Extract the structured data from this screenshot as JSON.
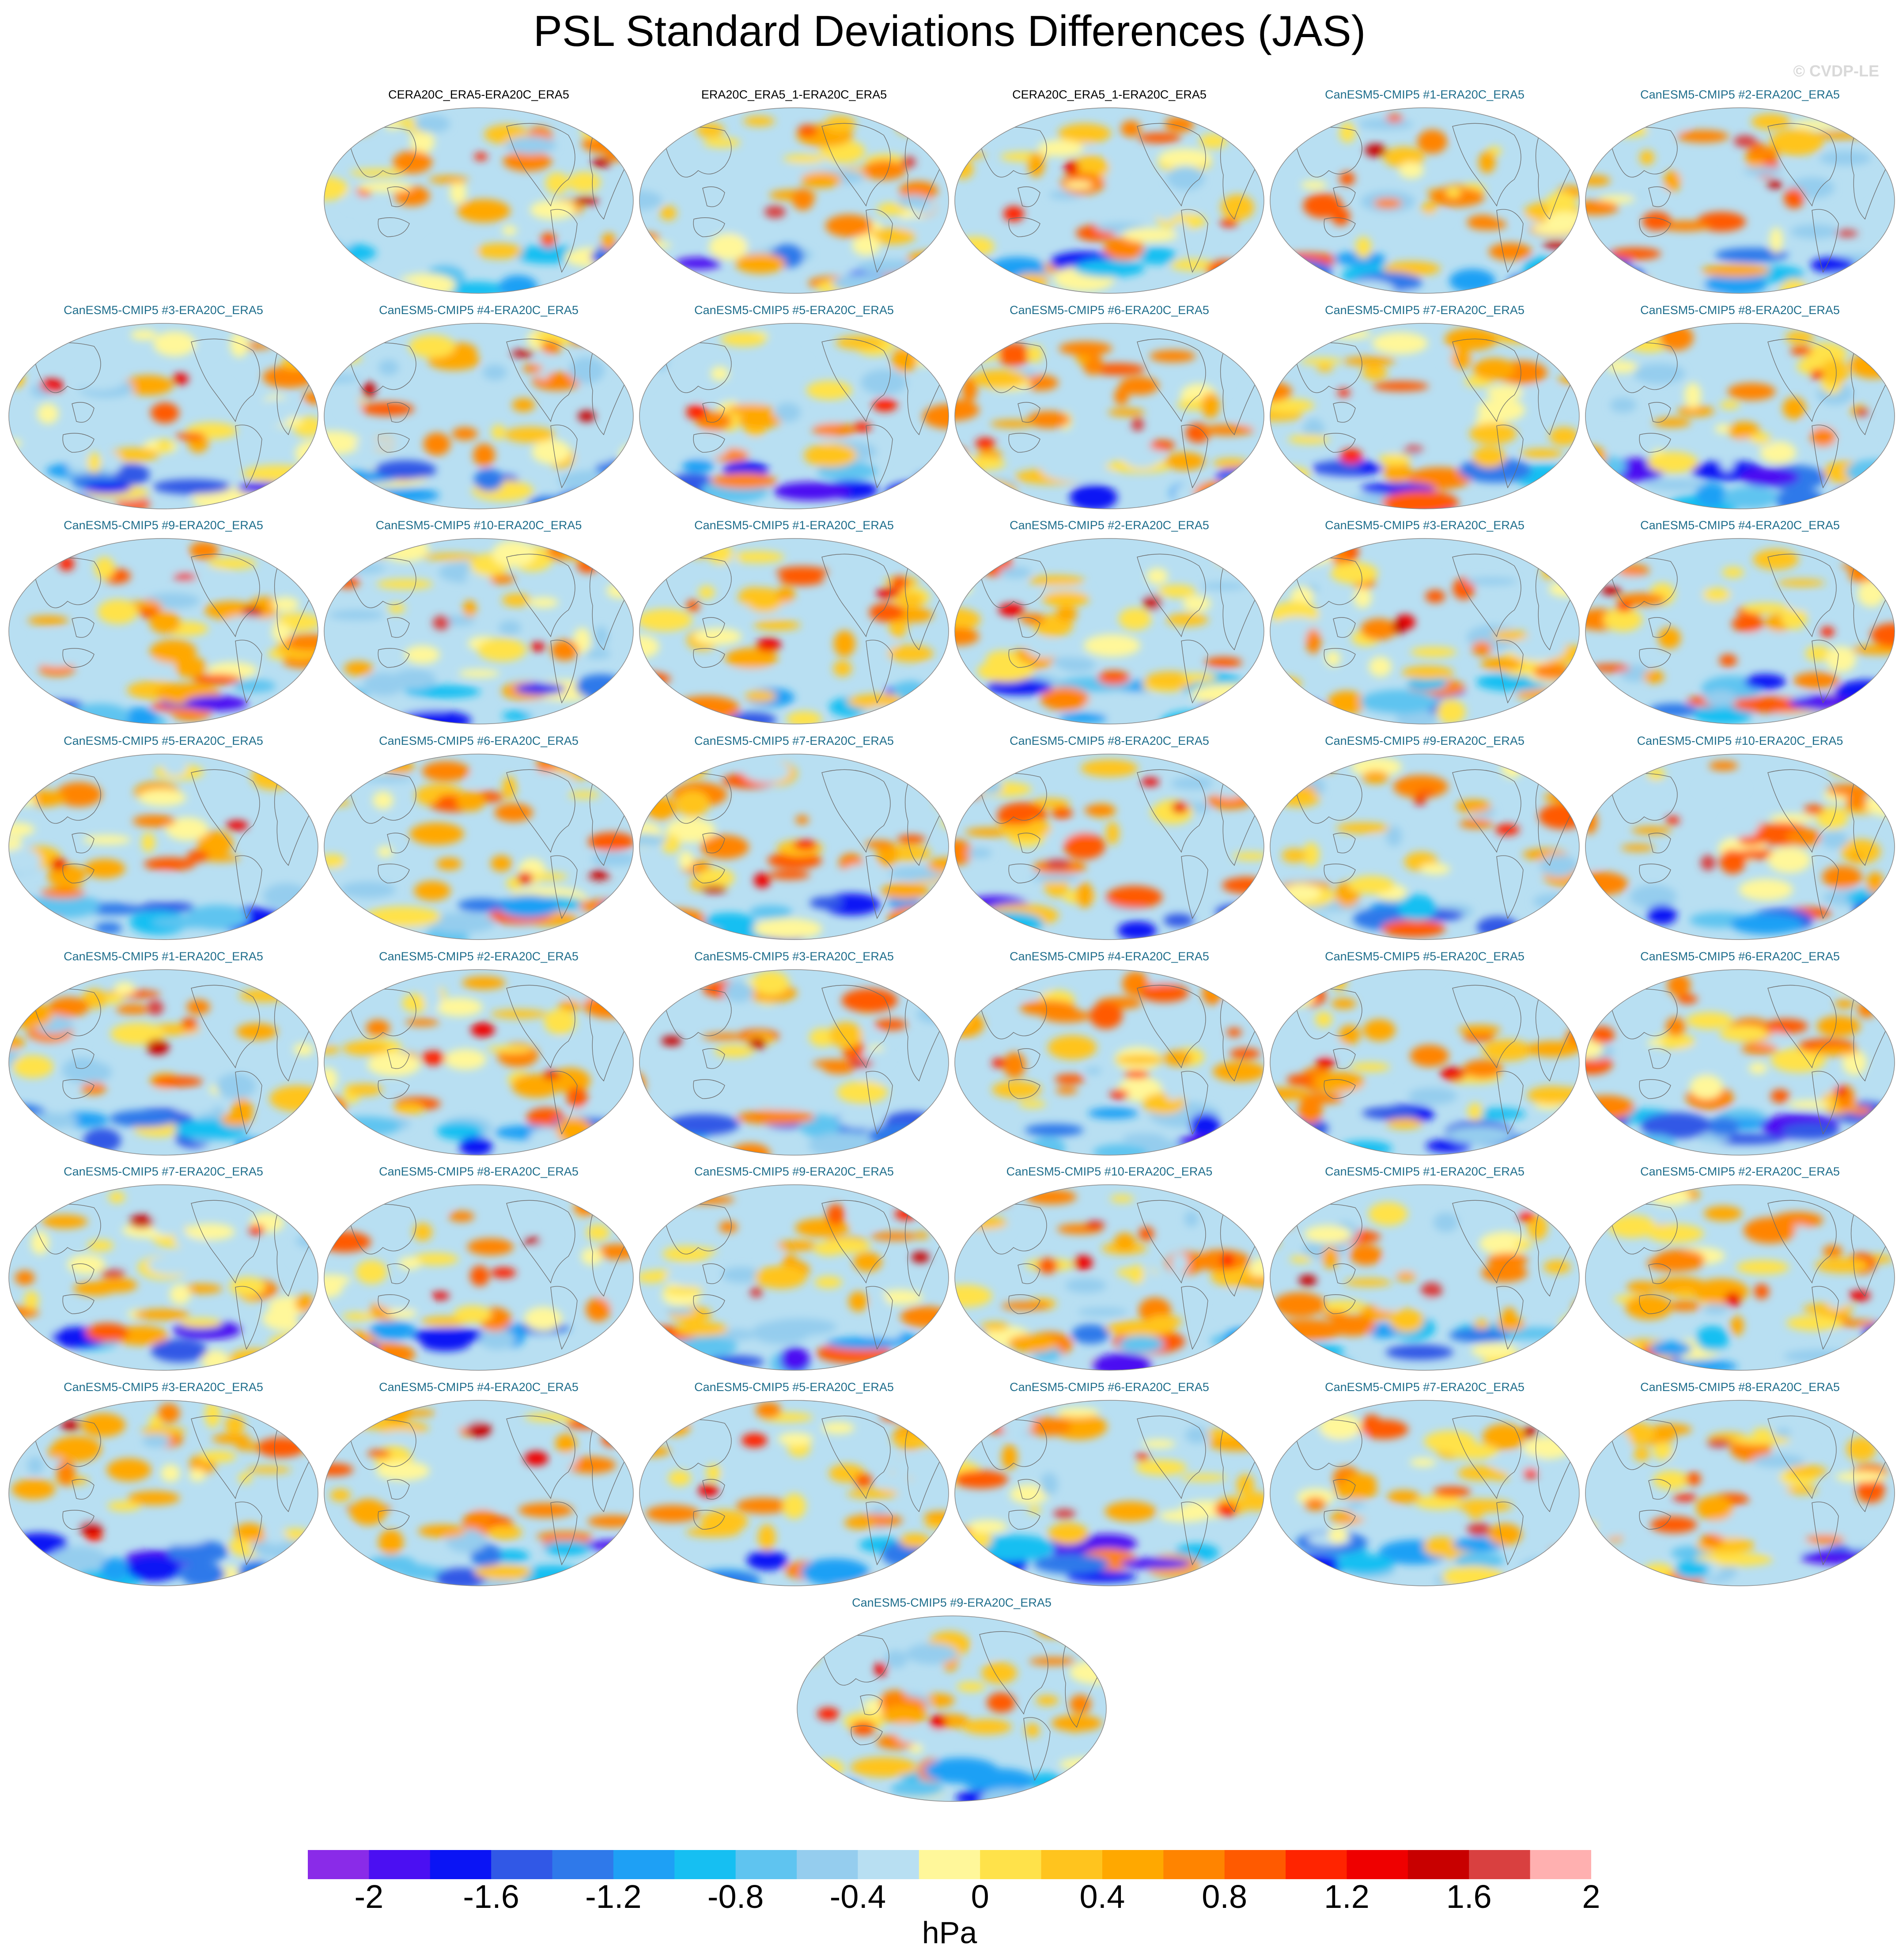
{
  "title": "PSL Standard Deviations Differences (JAS)",
  "watermark": "© CVDP-LE",
  "chart_data": {
    "type": "heatmap",
    "description_units": "hPa",
    "colorbar": {
      "label": "hPa",
      "levels": [
        -2.2,
        -2.0,
        -1.8,
        -1.6,
        -1.4,
        -1.2,
        -1.0,
        -0.8,
        -0.6,
        -0.4,
        -0.2,
        0.0,
        0.2,
        0.4,
        0.6,
        0.8,
        1.0,
        1.2,
        1.4,
        1.6,
        1.8,
        2.0,
        2.2
      ],
      "tick_labels": [
        "-2",
        "-1.6",
        "-1.2",
        "-0.8",
        "-0.4",
        "0",
        "0.4",
        "0.8",
        "1.2",
        "1.6",
        "2"
      ],
      "tick_values": [
        -2.0,
        -1.6,
        -1.2,
        -0.8,
        -0.4,
        0.0,
        0.4,
        0.8,
        1.2,
        1.6,
        2.0
      ],
      "colors": [
        "#8a2be8",
        "#4b0ff2",
        "#0a14f5",
        "#3158e6",
        "#2f79ea",
        "#1ea0f5",
        "#16bff2",
        "#5fc4f0",
        "#95cdee",
        "#b8dff2",
        "#fff79a",
        "#ffe24a",
        "#ffc41e",
        "#ffa800",
        "#ff8400",
        "#ff5a00",
        "#ff2400",
        "#ef0000",
        "#c80000",
        "#d94040",
        "#ffb0b0"
      ]
    },
    "panels": [
      {
        "title": "CERA20C_ERA5-ERA20C_ERA5",
        "color": "#000000",
        "seed": 3
      },
      {
        "title": "ERA20C_ERA5_1-ERA20C_ERA5",
        "color": "#000000",
        "seed": 5
      },
      {
        "title": "CERA20C_ERA5_1-ERA20C_ERA5",
        "color": "#000000",
        "seed": 7
      },
      {
        "title": "CanESM5-CMIP5 #1-ERA20C_ERA5",
        "color": "#1f6e8c",
        "seed": 11
      },
      {
        "title": "CanESM5-CMIP5 #2-ERA20C_ERA5",
        "color": "#1f6e8c",
        "seed": 13
      },
      {
        "title": "CanESM5-CMIP5 #3-ERA20C_ERA5",
        "color": "#1f6e8c",
        "seed": 17
      },
      {
        "title": "CanESM5-CMIP5 #4-ERA20C_ERA5",
        "color": "#1f6e8c",
        "seed": 19
      },
      {
        "title": "CanESM5-CMIP5 #5-ERA20C_ERA5",
        "color": "#1f6e8c",
        "seed": 23
      },
      {
        "title": "CanESM5-CMIP5 #6-ERA20C_ERA5",
        "color": "#1f6e8c",
        "seed": 29
      },
      {
        "title": "CanESM5-CMIP5 #7-ERA20C_ERA5",
        "color": "#1f6e8c",
        "seed": 31
      },
      {
        "title": "CanESM5-CMIP5 #8-ERA20C_ERA5",
        "color": "#1f6e8c",
        "seed": 37
      },
      {
        "title": "CanESM5-CMIP5 #9-ERA20C_ERA5",
        "color": "#1f6e8c",
        "seed": 41
      },
      {
        "title": "CanESM5-CMIP5 #10-ERA20C_ERA5",
        "color": "#1f6e8c",
        "seed": 43
      },
      {
        "title": "CanESM5-CMIP5 #1-ERA20C_ERA5",
        "color": "#1f6e8c",
        "seed": 47
      },
      {
        "title": "CanESM5-CMIP5 #2-ERA20C_ERA5",
        "color": "#1f6e8c",
        "seed": 53
      },
      {
        "title": "CanESM5-CMIP5 #3-ERA20C_ERA5",
        "color": "#1f6e8c",
        "seed": 59
      },
      {
        "title": "CanESM5-CMIP5 #4-ERA20C_ERA5",
        "color": "#1f6e8c",
        "seed": 61
      },
      {
        "title": "CanESM5-CMIP5 #5-ERA20C_ERA5",
        "color": "#1f6e8c",
        "seed": 67
      },
      {
        "title": "CanESM5-CMIP5 #6-ERA20C_ERA5",
        "color": "#1f6e8c",
        "seed": 71
      },
      {
        "title": "CanESM5-CMIP5 #7-ERA20C_ERA5",
        "color": "#1f6e8c",
        "seed": 73
      },
      {
        "title": "CanESM5-CMIP5 #8-ERA20C_ERA5",
        "color": "#1f6e8c",
        "seed": 79
      },
      {
        "title": "CanESM5-CMIP5 #9-ERA20C_ERA5",
        "color": "#1f6e8c",
        "seed": 83
      },
      {
        "title": "CanESM5-CMIP5 #10-ERA20C_ERA5",
        "color": "#1f6e8c",
        "seed": 89
      },
      {
        "title": "CanESM5-CMIP5 #1-ERA20C_ERA5",
        "color": "#1f6e8c",
        "seed": 97
      },
      {
        "title": "CanESM5-CMIP5 #2-ERA20C_ERA5",
        "color": "#1f6e8c",
        "seed": 101
      },
      {
        "title": "CanESM5-CMIP5 #3-ERA20C_ERA5",
        "color": "#1f6e8c",
        "seed": 103
      },
      {
        "title": "CanESM5-CMIP5 #4-ERA20C_ERA5",
        "color": "#1f6e8c",
        "seed": 107
      },
      {
        "title": "CanESM5-CMIP5 #5-ERA20C_ERA5",
        "color": "#1f6e8c",
        "seed": 109
      },
      {
        "title": "CanESM5-CMIP5 #6-ERA20C_ERA5",
        "color": "#1f6e8c",
        "seed": 113
      },
      {
        "title": "CanESM5-CMIP5 #7-ERA20C_ERA5",
        "color": "#1f6e8c",
        "seed": 127
      },
      {
        "title": "CanESM5-CMIP5 #8-ERA20C_ERA5",
        "color": "#1f6e8c",
        "seed": 131
      },
      {
        "title": "CanESM5-CMIP5 #9-ERA20C_ERA5",
        "color": "#1f6e8c",
        "seed": 137
      },
      {
        "title": "CanESM5-CMIP5 #10-ERA20C_ERA5",
        "color": "#1f6e8c",
        "seed": 139
      },
      {
        "title": "CanESM5-CMIP5 #1-ERA20C_ERA5",
        "color": "#1f6e8c",
        "seed": 149
      },
      {
        "title": "CanESM5-CMIP5 #2-ERA20C_ERA5",
        "color": "#1f6e8c",
        "seed": 151
      },
      {
        "title": "CanESM5-CMIP5 #3-ERA20C_ERA5",
        "color": "#1f6e8c",
        "seed": 157
      },
      {
        "title": "CanESM5-CMIP5 #4-ERA20C_ERA5",
        "color": "#1f6e8c",
        "seed": 163
      },
      {
        "title": "CanESM5-CMIP5 #5-ERA20C_ERA5",
        "color": "#1f6e8c",
        "seed": 167
      },
      {
        "title": "CanESM5-CMIP5 #6-ERA20C_ERA5",
        "color": "#1f6e8c",
        "seed": 173
      },
      {
        "title": "CanESM5-CMIP5 #7-ERA20C_ERA5",
        "color": "#1f6e8c",
        "seed": 179
      },
      {
        "title": "CanESM5-CMIP5 #8-ERA20C_ERA5",
        "color": "#1f6e8c",
        "seed": 181
      },
      {
        "title": "CanESM5-CMIP5 #9-ERA20C_ERA5",
        "color": "#1f6e8c",
        "seed": 191
      }
    ]
  }
}
